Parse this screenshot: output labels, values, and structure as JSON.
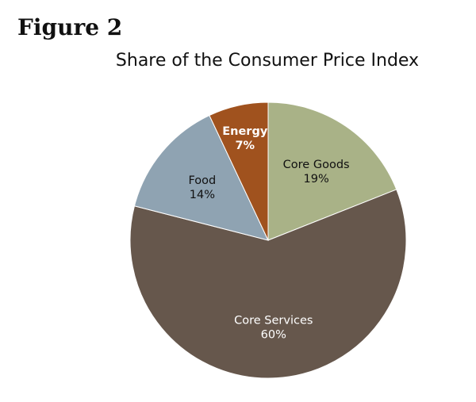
{
  "figure_label": "Figure 2",
  "chart_data": {
    "type": "pie",
    "title": "Share of the Consumer Price Index",
    "start_angle_deg": 0,
    "direction": "clockwise",
    "slices": [
      {
        "label": "Core Goods",
        "value": 19,
        "value_label": "19%",
        "color": "#a9b287",
        "text_color": "#111111"
      },
      {
        "label": "Core Services",
        "value": 60,
        "value_label": "60%",
        "color": "#66574c",
        "text_color": "#ffffff"
      },
      {
        "label": "Food",
        "value": 14,
        "value_label": "14%",
        "color": "#8fa3b2",
        "text_color": "#111111"
      },
      {
        "label": "Energy",
        "value": 7,
        "value_label": "7%",
        "color": "#a0521e",
        "text_color": "#ffffff"
      }
    ]
  }
}
